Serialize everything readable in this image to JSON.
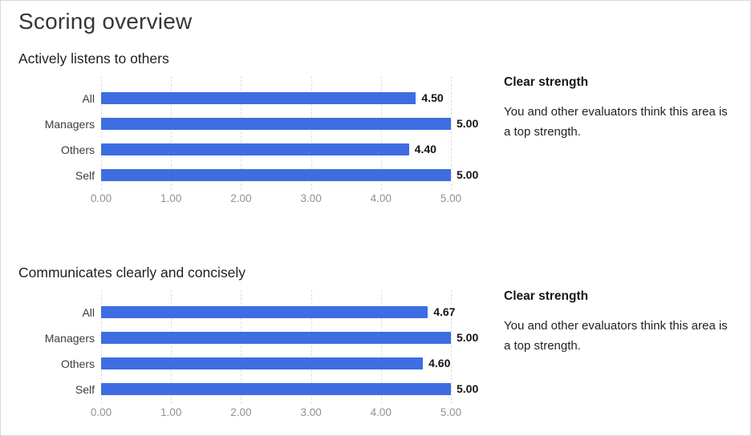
{
  "page": {
    "title": "Scoring overview"
  },
  "sections": [
    {
      "title": "Actively listens to others",
      "callout": {
        "heading": "Clear strength",
        "body": "You and other evaluators think this area is a top strength."
      }
    },
    {
      "title": "Communicates clearly and concisely",
      "callout": {
        "heading": "Clear strength",
        "body": "You and other evaluators think this area is a top strength."
      }
    }
  ],
  "chart_data": [
    {
      "type": "bar",
      "orientation": "horizontal",
      "title": "Actively listens to others",
      "categories": [
        "All",
        "Managers",
        "Others",
        "Self"
      ],
      "values": [
        4.5,
        5.0,
        4.4,
        5.0
      ],
      "value_labels": [
        "4.50",
        "5.00",
        "4.40",
        "5.00"
      ],
      "xlim": [
        0,
        5
      ],
      "x_ticks": [
        "0.00",
        "1.00",
        "2.00",
        "3.00",
        "4.00",
        "5.00"
      ],
      "grid": "vertical-dashed",
      "legend": "none",
      "bar_color": "#3d6de1"
    },
    {
      "type": "bar",
      "orientation": "horizontal",
      "title": "Communicates clearly and concisely",
      "categories": [
        "All",
        "Managers",
        "Others",
        "Self"
      ],
      "values": [
        4.67,
        5.0,
        4.6,
        5.0
      ],
      "value_labels": [
        "4.67",
        "5.00",
        "4.60",
        "5.00"
      ],
      "xlim": [
        0,
        5
      ],
      "x_ticks": [
        "0.00",
        "1.00",
        "2.00",
        "3.00",
        "4.00",
        "5.00"
      ],
      "grid": "vertical-dashed",
      "legend": "none",
      "bar_color": "#3d6de1"
    }
  ]
}
